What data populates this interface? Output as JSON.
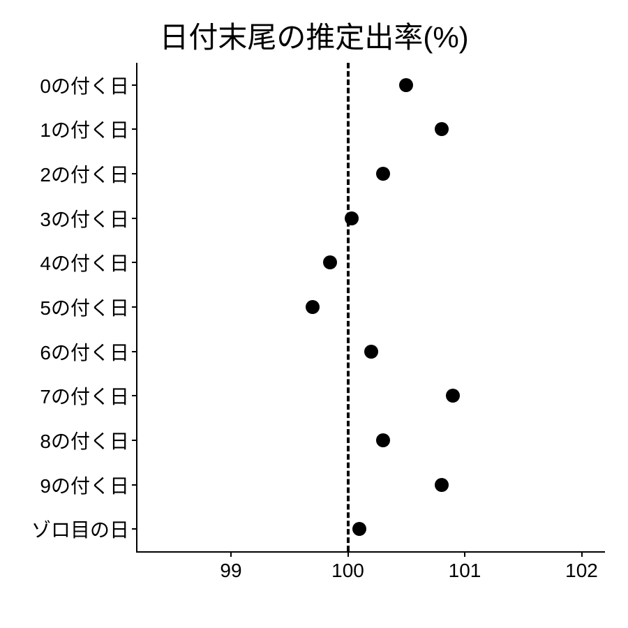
{
  "chart": {
    "type": "scatter",
    "title": "日付末尾の推定出率(%)",
    "title_fontsize": 42,
    "label_fontsize": 28,
    "background_color": "#ffffff",
    "marker_color": "#000000",
    "marker_size": 20,
    "axis_color": "#000000",
    "axis_width": 2,
    "reference_line": {
      "x_value": 100,
      "style": "dashed",
      "color": "#000000",
      "width": 4
    },
    "xlim": [
      98.2,
      102.2
    ],
    "x_ticks": [
      99,
      100,
      101,
      102
    ],
    "y_categories": [
      "0の付く日",
      "1の付く日",
      "2の付く日",
      "3の付く日",
      "4の付く日",
      "5の付く日",
      "6の付く日",
      "7の付く日",
      "8の付く日",
      "9の付く日",
      "ゾロ目の日"
    ],
    "data": [
      {
        "category": "0の付く日",
        "value": 100.5
      },
      {
        "category": "1の付く日",
        "value": 100.8
      },
      {
        "category": "2の付く日",
        "value": 100.3
      },
      {
        "category": "3の付く日",
        "value": 100.03
      },
      {
        "category": "4の付く日",
        "value": 99.85
      },
      {
        "category": "5の付く日",
        "value": 99.7
      },
      {
        "category": "6の付く日",
        "value": 100.2
      },
      {
        "category": "7の付く日",
        "value": 100.9
      },
      {
        "category": "8の付く日",
        "value": 100.3
      },
      {
        "category": "9の付く日",
        "value": 100.8
      },
      {
        "category": "ゾロ目の日",
        "value": 100.1
      }
    ]
  }
}
